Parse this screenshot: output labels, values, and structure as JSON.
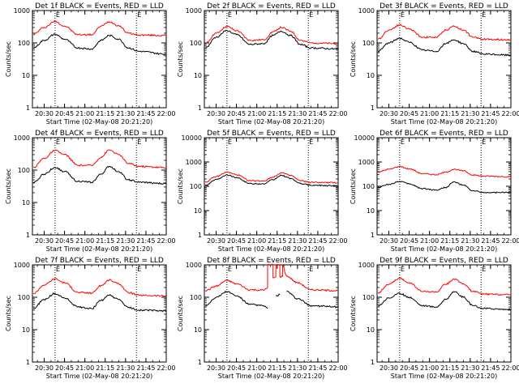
{
  "chart_data": [
    {
      "type": "line",
      "title": "Det 1f BLACK = Events, RED = LLD",
      "xlabel": "Start Time (02-May-08 20:21:20)",
      "ylabel": "Counts/sec",
      "ylim": [
        1,
        1000
      ],
      "yscale": "log",
      "xlim": [
        "20:21:20",
        "22:00"
      ],
      "x_ticks": [
        "20:30",
        "20:45",
        "21:00",
        "21:15",
        "21:30",
        "21:45",
        "22:00"
      ],
      "y_ticks": [
        "1",
        "10",
        "100",
        "1000"
      ],
      "markers": [
        "20:38",
        "21:38"
      ],
      "annotation": "E",
      "series": [
        {
          "color": "#ff0000",
          "x": [
            "20:22",
            "20:30",
            "20:38",
            "20:45",
            "20:55",
            "21:05",
            "21:12",
            "21:18",
            "21:25",
            "21:32",
            "21:40",
            "22:00"
          ],
          "values": [
            185,
            300,
            460,
            330,
            180,
            180,
            330,
            450,
            340,
            200,
            175,
            170
          ]
        },
        {
          "color": "#000000",
          "x": [
            "20:22",
            "20:30",
            "20:38",
            "20:45",
            "20:55",
            "21:05",
            "21:12",
            "21:18",
            "21:25",
            "21:32",
            "21:40",
            "22:00"
          ],
          "values": [
            70,
            120,
            185,
            130,
            70,
            65,
            120,
            170,
            130,
            70,
            55,
            45
          ]
        }
      ]
    },
    {
      "type": "line",
      "title": "Det 2f BLACK = Events, RED = LLD",
      "xlabel": "Start Time (02-May-08 20:21:20)",
      "ylabel": "Counts/sec",
      "ylim": [
        1,
        1000
      ],
      "yscale": "log",
      "xlim": [
        "20:21:20",
        "22:00"
      ],
      "x_ticks": [
        "20:30",
        "20:45",
        "21:00",
        "21:15",
        "21:30",
        "21:45",
        "22:00"
      ],
      "y_ticks": [
        "1",
        "10",
        "100",
        "1000"
      ],
      "markers": [
        "20:38",
        "21:38"
      ],
      "annotation": "E",
      "series": [
        {
          "color": "#ff0000",
          "x": [
            "20:22",
            "20:30",
            "20:38",
            "20:45",
            "20:55",
            "21:05",
            "21:12",
            "21:18",
            "21:25",
            "21:32",
            "21:40",
            "22:00"
          ],
          "values": [
            95,
            200,
            320,
            240,
            120,
            125,
            220,
            300,
            230,
            120,
            100,
            95
          ]
        },
        {
          "color": "#000000",
          "x": [
            "20:22",
            "20:30",
            "20:38",
            "20:45",
            "20:55",
            "21:05",
            "21:12",
            "21:18",
            "21:25",
            "21:32",
            "21:40",
            "22:00"
          ],
          "values": [
            70,
            150,
            240,
            180,
            90,
            95,
            170,
            230,
            170,
            90,
            70,
            65
          ]
        }
      ]
    },
    {
      "type": "line",
      "title": "Det 3f BLACK = Events, RED = LLD",
      "xlabel": "Start Time (02-May-08 20:21:20)",
      "ylabel": "Counts/sec",
      "ylim": [
        1,
        1000
      ],
      "yscale": "log",
      "xlim": [
        "20:21:20",
        "22:00"
      ],
      "x_ticks": [
        "20:30",
        "20:45",
        "21:00",
        "21:15",
        "21:30",
        "21:45",
        "22:00"
      ],
      "y_ticks": [
        "1",
        "10",
        "100",
        "1000"
      ],
      "markers": [
        "20:38",
        "21:38"
      ],
      "annotation": "E",
      "series": [
        {
          "color": "#ff0000",
          "x": [
            "20:22",
            "20:30",
            "20:38",
            "20:45",
            "20:55",
            "21:05",
            "21:12",
            "21:18",
            "21:25",
            "21:32",
            "21:40",
            "22:00"
          ],
          "values": [
            130,
            250,
            360,
            270,
            150,
            150,
            250,
            330,
            250,
            150,
            130,
            125
          ]
        },
        {
          "color": "#000000",
          "x": [
            "20:22",
            "20:30",
            "20:38",
            "20:45",
            "20:55",
            "21:05",
            "21:12",
            "21:18",
            "21:25",
            "21:32",
            "21:40",
            "22:00"
          ],
          "values": [
            55,
            100,
            140,
            105,
            60,
            55,
            95,
            125,
            95,
            55,
            45,
            42
          ]
        }
      ]
    },
    {
      "type": "line",
      "title": "Det 4f BLACK = Events, RED = LLD",
      "xlabel": "Start Time (02-May-08 20:21:20)",
      "ylabel": "Counts/sec",
      "ylim": [
        1,
        1000
      ],
      "yscale": "log",
      "xlim": [
        "20:21:20",
        "22:00"
      ],
      "x_ticks": [
        "20:30",
        "20:45",
        "21:00",
        "21:15",
        "21:30",
        "21:45",
        "22:00"
      ],
      "y_ticks": [
        "1",
        "10",
        "100",
        "1000"
      ],
      "markers": [
        "20:38",
        "21:38"
      ],
      "annotation": "E",
      "series": [
        {
          "color": "#ff0000",
          "x": [
            "20:22",
            "20:30",
            "20:38",
            "20:45",
            "20:55",
            "21:05",
            "21:12",
            "21:18",
            "21:25",
            "21:32",
            "21:40",
            "22:00"
          ],
          "values": [
            120,
            230,
            400,
            300,
            140,
            140,
            250,
            420,
            300,
            160,
            130,
            120
          ]
        },
        {
          "color": "#000000",
          "x": [
            "20:22",
            "20:30",
            "20:38",
            "20:45",
            "20:55",
            "21:05",
            "21:12",
            "21:18",
            "21:25",
            "21:32",
            "21:40",
            "22:00"
          ],
          "values": [
            40,
            75,
            120,
            90,
            45,
            42,
            75,
            130,
            90,
            50,
            42,
            38
          ]
        }
      ]
    },
    {
      "type": "line",
      "title": "Det 5f BLACK = Events, RED = LLD",
      "xlabel": "Start Time (02-May-08 20:21:20)",
      "ylabel": "Counts/sec",
      "ylim": [
        1,
        10000
      ],
      "yscale": "log",
      "xlim": [
        "20:21:20",
        "22:00"
      ],
      "x_ticks": [
        "20:30",
        "20:45",
        "21:00",
        "21:15",
        "21:30",
        "21:45",
        "22:00"
      ],
      "y_ticks": [
        "1",
        "10",
        "100",
        "1000",
        "10000"
      ],
      "markers": [
        "20:38",
        "21:38"
      ],
      "annotation": "E",
      "series": [
        {
          "color": "#ff0000",
          "x": [
            "20:22",
            "20:30",
            "20:38",
            "20:45",
            "20:55",
            "21:05",
            "21:12",
            "21:18",
            "21:25",
            "21:32",
            "21:40",
            "22:00"
          ],
          "values": [
            150,
            250,
            380,
            300,
            170,
            165,
            240,
            360,
            280,
            170,
            145,
            140
          ]
        },
        {
          "color": "#000000",
          "x": [
            "20:22",
            "20:30",
            "20:38",
            "20:45",
            "20:55",
            "21:05",
            "21:12",
            "21:18",
            "21:25",
            "21:32",
            "21:40",
            "22:00"
          ],
          "values": [
            110,
            190,
            300,
            230,
            130,
            125,
            185,
            280,
            210,
            130,
            110,
            105
          ]
        }
      ]
    },
    {
      "type": "line",
      "title": "Det 6f BLACK = Events, RED = LLD",
      "xlabel": "Start Time (02-May-08 20:21:20)",
      "ylabel": "Counts/sec",
      "ylim": [
        1,
        10000
      ],
      "yscale": "log",
      "xlim": [
        "20:21:20",
        "22:00"
      ],
      "x_ticks": [
        "20:30",
        "20:45",
        "21:00",
        "21:15",
        "21:30",
        "21:45",
        "22:00"
      ],
      "y_ticks": [
        "1",
        "10",
        "100",
        "1000",
        "10000"
      ],
      "markers": [
        "20:38",
        "21:38"
      ],
      "annotation": "E",
      "series": [
        {
          "color": "#ff0000",
          "x": [
            "20:22",
            "20:30",
            "20:38",
            "20:45",
            "20:55",
            "21:05",
            "21:12",
            "21:18",
            "21:25",
            "21:32",
            "21:40",
            "22:00"
          ],
          "values": [
            380,
            500,
            650,
            520,
            330,
            300,
            380,
            500,
            430,
            290,
            260,
            250
          ]
        },
        {
          "color": "#000000",
          "x": [
            "20:22",
            "20:30",
            "20:38",
            "20:45",
            "20:55",
            "21:05",
            "21:12",
            "21:18",
            "21:25",
            "21:32",
            "21:40",
            "22:00"
          ],
          "values": [
            90,
            120,
            160,
            125,
            80,
            70,
            90,
            150,
            110,
            65,
            55,
            55
          ]
        }
      ]
    },
    {
      "type": "line",
      "title": "Det 7f BLACK = Events, RED = LLD",
      "xlabel": "Start Time (02-May-08 20:21:20)",
      "ylabel": "Counts/sec",
      "ylim": [
        1,
        1000
      ],
      "yscale": "log",
      "xlim": [
        "20:21:20",
        "22:00"
      ],
      "x_ticks": [
        "20:30",
        "20:45",
        "21:00",
        "21:15",
        "21:30",
        "21:45",
        "22:00"
      ],
      "y_ticks": [
        "1",
        "10",
        "100",
        "1000"
      ],
      "markers": [
        "20:38",
        "21:38"
      ],
      "annotation": "E",
      "series": [
        {
          "color": "#ff0000",
          "x": [
            "20:22",
            "20:30",
            "20:38",
            "20:45",
            "20:55",
            "21:05",
            "21:12",
            "21:18",
            "21:25",
            "21:32",
            "21:40",
            "22:00"
          ],
          "values": [
            130,
            240,
            370,
            280,
            140,
            135,
            230,
            340,
            260,
            140,
            115,
            110
          ]
        },
        {
          "color": "#000000",
          "x": [
            "20:22",
            "20:30",
            "20:38",
            "20:45",
            "20:55",
            "21:05",
            "21:12",
            "21:18",
            "21:25",
            "21:32",
            "21:40",
            "22:00"
          ],
          "values": [
            45,
            85,
            130,
            95,
            50,
            45,
            80,
            115,
            85,
            48,
            40,
            38
          ]
        }
      ]
    },
    {
      "type": "line",
      "title": "Det 8f BLACK = Events, RED = LLD",
      "xlabel": "Start Time (02-May-08 20:21:20)",
      "ylabel": "Counts/sec",
      "ylim": [
        1,
        1000
      ],
      "yscale": "log",
      "xlim": [
        "20:21:20",
        "22:00"
      ],
      "x_ticks": [
        "20:30",
        "20:45",
        "21:00",
        "21:15",
        "21:30",
        "21:45",
        "22:00"
      ],
      "y_ticks": [
        "1",
        "10",
        "100",
        "1000"
      ],
      "markers": [
        "20:38",
        "21:38"
      ],
      "annotation": "E",
      "series": [
        {
          "color": "#ff0000",
          "x": [
            "20:22",
            "20:30",
            "20:38",
            "20:45",
            "20:55",
            "21:05",
            "21:08",
            "21:08",
            "21:12",
            "21:12",
            "21:14",
            "21:14",
            "21:17",
            "21:17",
            "21:19",
            "21:19",
            "21:22",
            "21:30",
            "21:40",
            "22:00"
          ],
          "values": [
            160,
            220,
            330,
            260,
            170,
            165,
            200,
            1000,
            1000,
            400,
            420,
            1000,
            1000,
            430,
            440,
            1000,
            450,
            280,
            170,
            160
          ]
        },
        {
          "color": "#000000",
          "x": [
            "20:22",
            "20:30",
            "20:38",
            "20:45",
            "20:55",
            "21:05",
            "21:08",
            "21:08",
            "21:14",
            "21:14",
            "21:17",
            "21:17",
            "21:22",
            "21:30",
            "21:40",
            "22:00"
          ],
          "values": [
            55,
            100,
            150,
            110,
            60,
            55,
            45,
            null,
            null,
            110,
            120,
            null,
            150,
            90,
            55,
            50
          ]
        }
      ]
    },
    {
      "type": "line",
      "title": "Det 9f BLACK = Events, RED = LLD",
      "xlabel": "Start Time (02-May-08 20:21:20)",
      "ylabel": "Counts/sec",
      "ylim": [
        1,
        1000
      ],
      "yscale": "log",
      "xlim": [
        "20:21:20",
        "22:00"
      ],
      "x_ticks": [
        "20:30",
        "20:45",
        "21:00",
        "21:15",
        "21:30",
        "21:45",
        "22:00"
      ],
      "y_ticks": [
        "1",
        "10",
        "100",
        "1000"
      ],
      "markers": [
        "20:38",
        "21:38"
      ],
      "annotation": "E",
      "series": [
        {
          "color": "#ff0000",
          "x": [
            "20:22",
            "20:30",
            "20:38",
            "20:45",
            "20:55",
            "21:05",
            "21:12",
            "21:18",
            "21:25",
            "21:32",
            "21:40",
            "22:00"
          ],
          "values": [
            140,
            250,
            380,
            280,
            150,
            145,
            250,
            360,
            260,
            150,
            125,
            120
          ]
        },
        {
          "color": "#000000",
          "x": [
            "20:22",
            "20:30",
            "20:38",
            "20:45",
            "20:55",
            "21:05",
            "21:12",
            "21:18",
            "21:25",
            "21:32",
            "21:40",
            "22:00"
          ],
          "values": [
            55,
            95,
            130,
            100,
            55,
            50,
            85,
            150,
            100,
            55,
            45,
            42
          ]
        }
      ]
    }
  ]
}
